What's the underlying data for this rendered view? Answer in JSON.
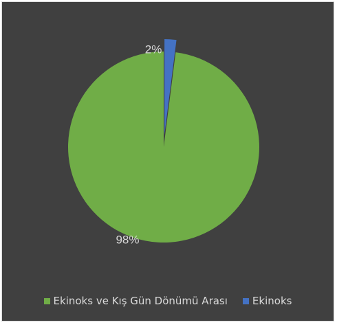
{
  "chart_data": {
    "type": "pie",
    "categories": [
      "Ekinoks ve Kış Gün Dönümü Arası",
      "Ekinoks"
    ],
    "values": [
      98,
      2
    ],
    "data_labels": [
      "98%",
      "2%"
    ],
    "colors": [
      "#70ad47",
      "#4472c4"
    ],
    "exploded": [
      false,
      true
    ],
    "title": "",
    "legend_position": "bottom"
  },
  "background_color": "#404040"
}
